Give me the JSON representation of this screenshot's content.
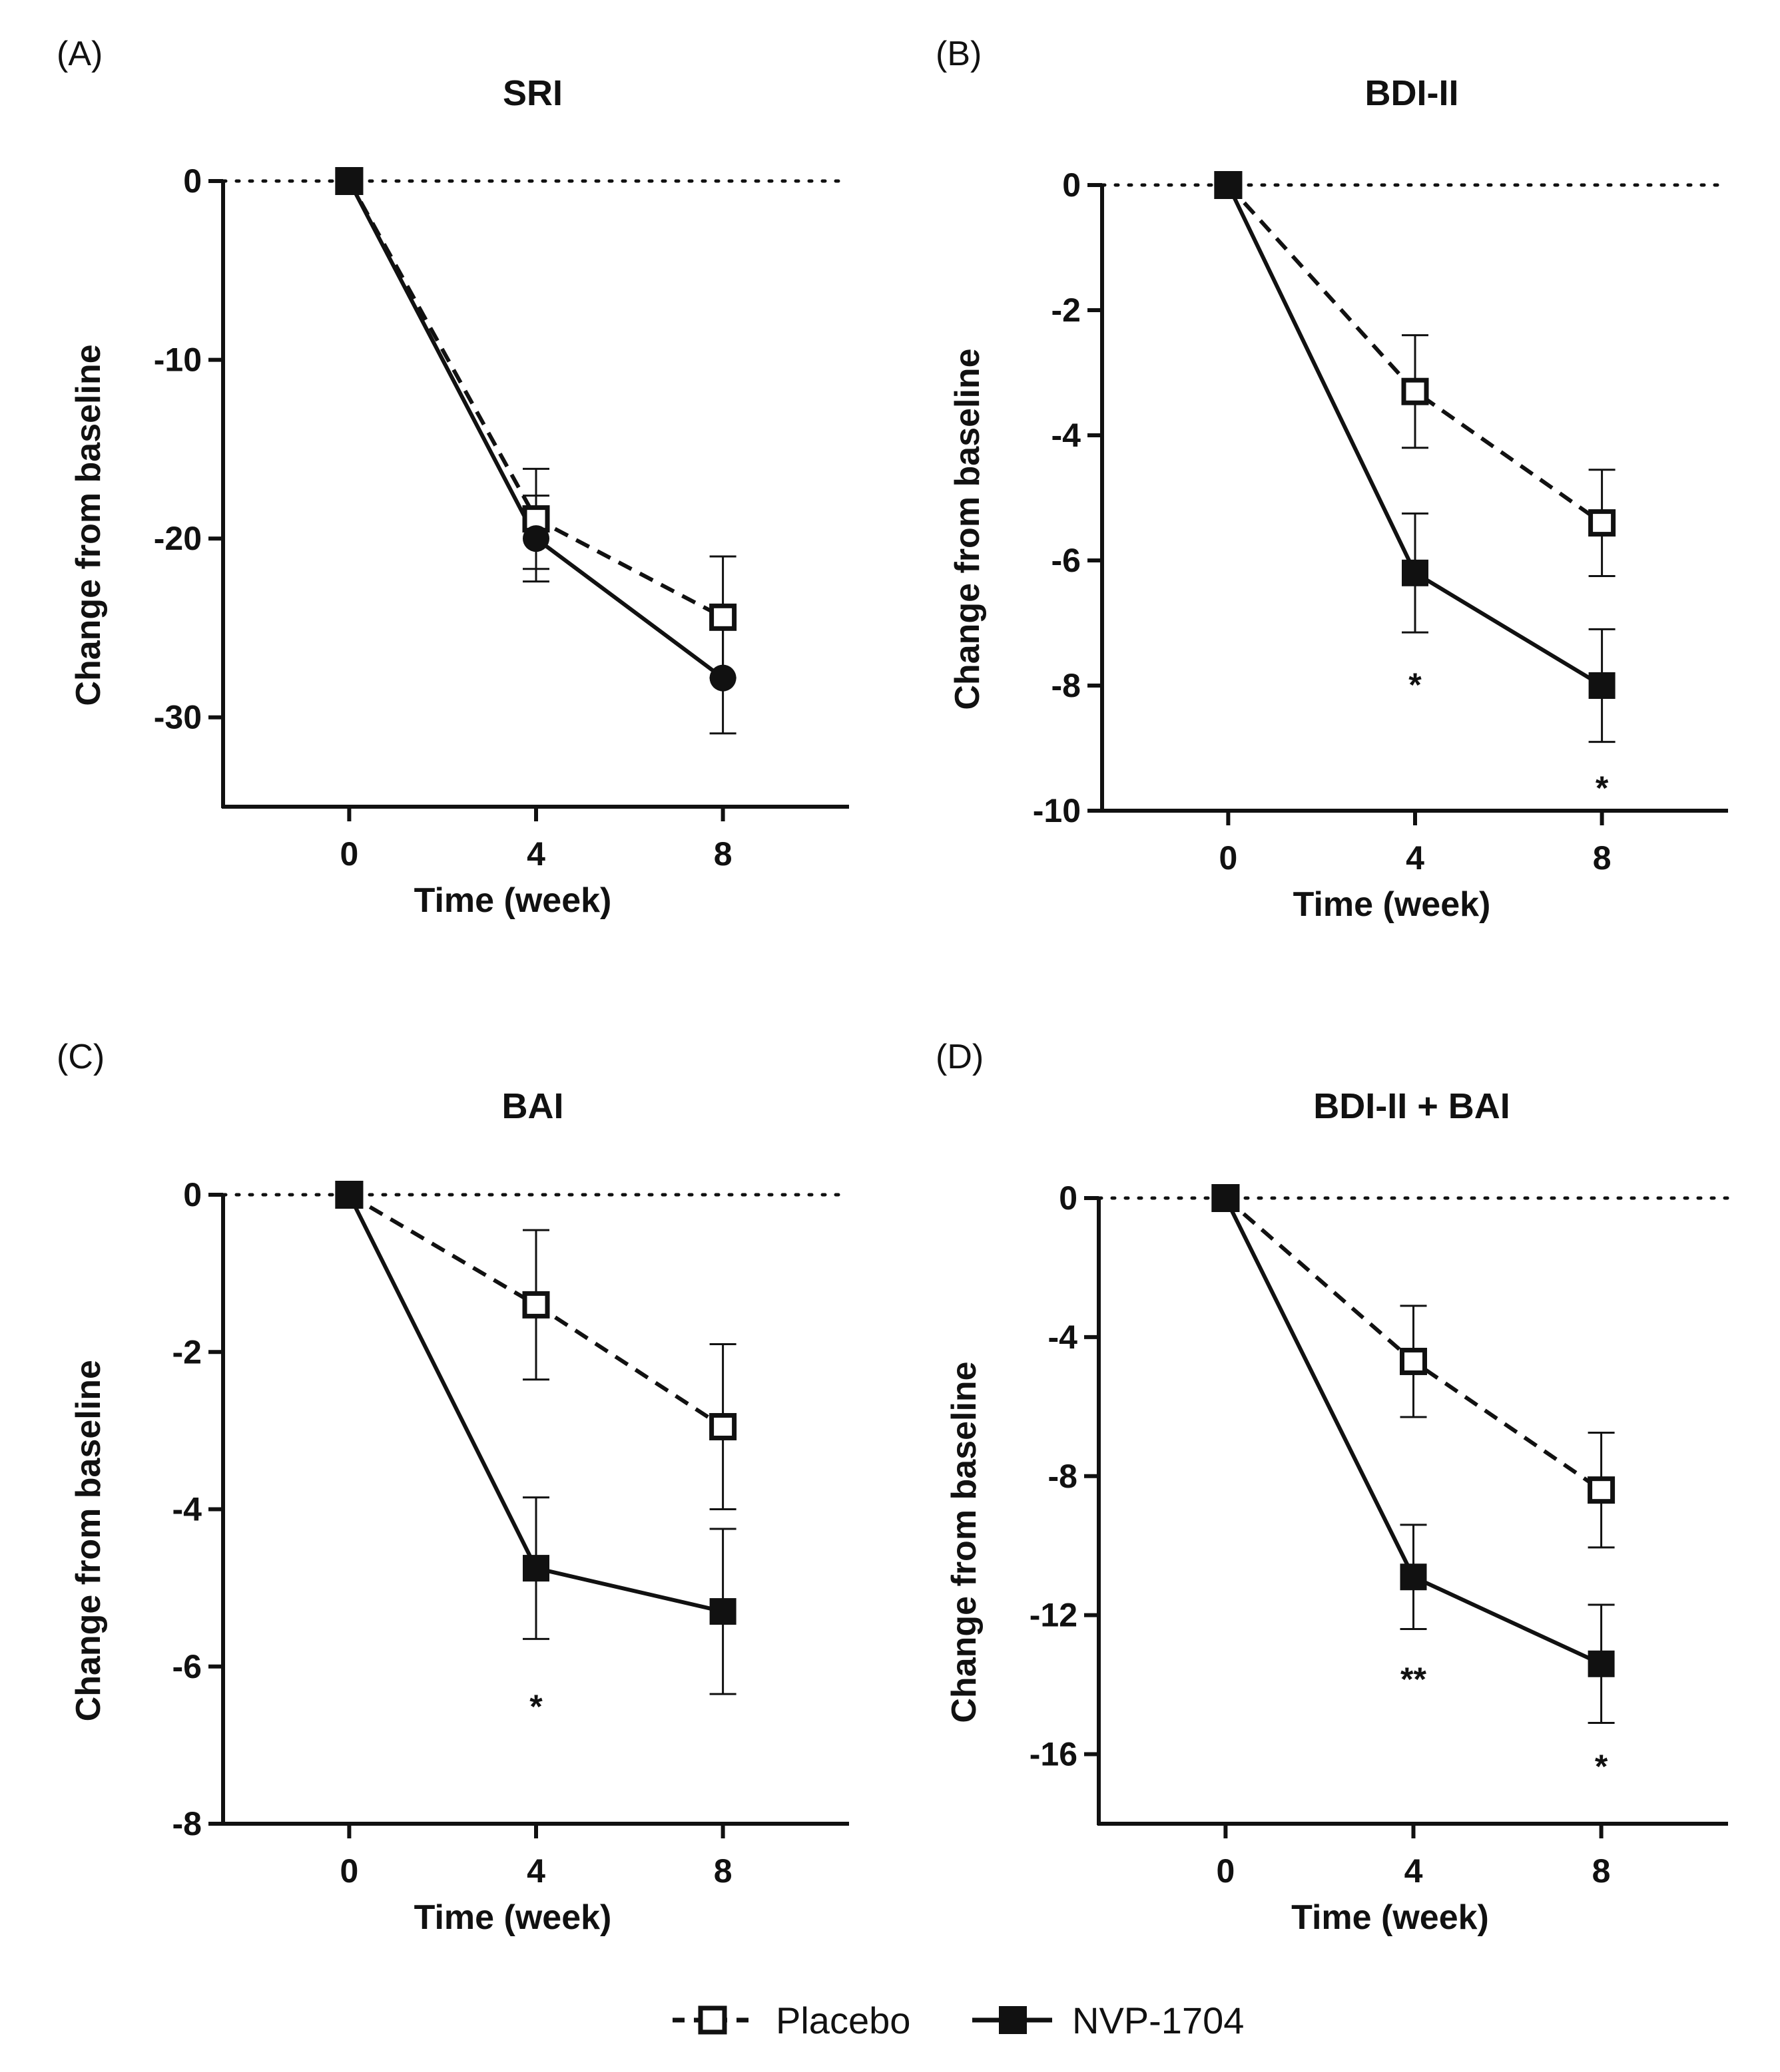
{
  "chart_data": [
    {
      "panel": "(A)",
      "title": "SRI",
      "type": "line",
      "xlabel": "Time (week)",
      "ylabel": "Change from baseline",
      "x": [
        0,
        4,
        8
      ],
      "xticks": [
        "0",
        "4",
        "8"
      ],
      "xlim": [
        -2.7,
        10.7
      ],
      "ylim": [
        -35,
        0
      ],
      "yticks": [
        0,
        -10,
        -20,
        -30
      ],
      "ytick_labels": [
        "0",
        "-10",
        "-20",
        "-30"
      ],
      "series": [
        {
          "name": "Placebo",
          "values": [
            0,
            -18.9,
            -24.4
          ],
          "err": [
            0,
            2.8,
            3.4
          ],
          "marker": "open-square",
          "dash": true
        },
        {
          "name": "NVP-1704",
          "values": [
            0,
            -20.0,
            -27.8
          ],
          "err": [
            0,
            2.4,
            3.1
          ],
          "marker": "filled-circle",
          "dash": false
        }
      ],
      "significance": []
    },
    {
      "panel": "(B)",
      "title": "BDI-II",
      "type": "line",
      "xlabel": "Time (week)",
      "ylabel": "Change from baseline",
      "x": [
        0,
        4,
        8
      ],
      "xticks": [
        "0",
        "4",
        "8"
      ],
      "xlim": [
        -2.7,
        10.7
      ],
      "ylim": [
        -10,
        0
      ],
      "yticks": [
        0,
        -2,
        -4,
        -6,
        -8,
        -10
      ],
      "ytick_labels": [
        "0",
        "-2",
        "-4",
        "-6",
        "-8",
        "-10"
      ],
      "series": [
        {
          "name": "Placebo",
          "values": [
            0,
            -3.3,
            -5.4
          ],
          "err": [
            0,
            0.9,
            0.85
          ],
          "marker": "open-square",
          "dash": true
        },
        {
          "name": "NVP-1704",
          "values": [
            0,
            -6.2,
            -8.0
          ],
          "err": [
            0,
            0.95,
            0.9
          ],
          "marker": "filled-square",
          "dash": false
        }
      ],
      "significance": [
        {
          "x": 4,
          "y": -7.85,
          "label": "*"
        },
        {
          "x": 8,
          "y": -9.5,
          "label": "*"
        }
      ]
    },
    {
      "panel": "(C)",
      "title": "BAI",
      "type": "line",
      "xlabel": "Time (week)",
      "ylabel": "Change from baseline",
      "x": [
        0,
        4,
        8
      ],
      "xticks": [
        "0",
        "4",
        "8"
      ],
      "xlim": [
        -2.7,
        10.7
      ],
      "ylim": [
        -8,
        0
      ],
      "yticks": [
        0,
        -2,
        -4,
        -6,
        -8
      ],
      "ytick_labels": [
        "0",
        "-2",
        "-4",
        "-6",
        "-8"
      ],
      "series": [
        {
          "name": "Placebo",
          "values": [
            0,
            -1.4,
            -2.95
          ],
          "err": [
            0,
            0.95,
            1.05
          ],
          "marker": "open-square",
          "dash": true
        },
        {
          "name": "NVP-1704",
          "values": [
            0,
            -4.75,
            -5.3
          ],
          "err": [
            0,
            0.9,
            1.05
          ],
          "marker": "filled-square",
          "dash": false
        }
      ],
      "significance": [
        {
          "x": 4,
          "y": -6.4,
          "label": "*"
        }
      ]
    },
    {
      "panel": "(D)",
      "title": "BDI-II + BAI",
      "type": "line",
      "xlabel": "Time (week)",
      "ylabel": "Change from baseline",
      "x": [
        0,
        4,
        8
      ],
      "xticks": [
        "0",
        "4",
        "8"
      ],
      "xlim": [
        -2.7,
        10.7
      ],
      "ylim": [
        -18,
        0
      ],
      "yticks": [
        0,
        -4,
        -8,
        -12,
        -16
      ],
      "ytick_labels": [
        "0",
        "-4",
        "-8",
        "-12",
        "-16"
      ],
      "series": [
        {
          "name": "Placebo",
          "values": [
            0,
            -4.7,
            -8.4
          ],
          "err": [
            0,
            1.6,
            1.65
          ],
          "marker": "open-square",
          "dash": true
        },
        {
          "name": "NVP-1704",
          "values": [
            0,
            -10.9,
            -13.4
          ],
          "err": [
            0,
            1.5,
            1.7
          ],
          "marker": "filled-square",
          "dash": false
        }
      ],
      "significance": [
        {
          "x": 4,
          "y": -13.6,
          "label": "**"
        },
        {
          "x": 8,
          "y": -16.1,
          "label": "*"
        }
      ]
    }
  ],
  "legend": [
    {
      "name": "Placebo",
      "marker": "open-square",
      "dash": true
    },
    {
      "name": "NVP-1704",
      "marker": "filled-square",
      "dash": false
    }
  ]
}
